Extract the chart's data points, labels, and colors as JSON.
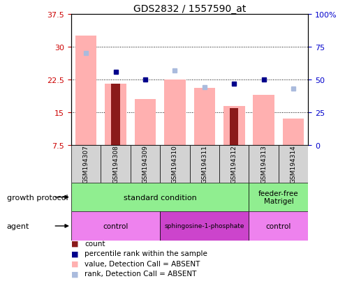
{
  "title": "GDS2832 / 1557590_at",
  "samples": [
    "GSM194307",
    "GSM194308",
    "GSM194309",
    "GSM194310",
    "GSM194311",
    "GSM194312",
    "GSM194313",
    "GSM194314"
  ],
  "ylim_left": [
    7.5,
    37.5
  ],
  "ylim_right": [
    0,
    100
  ],
  "yticks_left": [
    7.5,
    15,
    22.5,
    30,
    37.5
  ],
  "yticks_right": [
    0,
    25,
    50,
    75,
    100
  ],
  "ytick_labels_left": [
    "7.5",
    "15",
    "22.5",
    "30",
    "37.5"
  ],
  "ytick_labels_right": [
    "0",
    "25",
    "50",
    "75",
    "100%"
  ],
  "pink_bar_values": [
    32.5,
    21.5,
    18.0,
    22.5,
    20.5,
    16.5,
    19.0,
    13.5
  ],
  "dark_red_bar_values": [
    null,
    21.5,
    null,
    null,
    null,
    16.0,
    null,
    null
  ],
  "blue_square_pct": [
    null,
    56.0,
    50.0,
    null,
    null,
    47.0,
    50.0,
    null
  ],
  "light_blue_square_pct": [
    70.0,
    null,
    null,
    57.0,
    44.0,
    null,
    null,
    43.0
  ],
  "gp_groups": [
    {
      "label": "standard condition",
      "start": 0,
      "end": 6
    },
    {
      "label": "feeder-free\nMatrigel",
      "start": 6,
      "end": 8
    }
  ],
  "agent_groups": [
    {
      "label": "control",
      "start": 0,
      "end": 3,
      "color": "#ee82ee"
    },
    {
      "label": "sphingosine-1-phosphate",
      "start": 3,
      "end": 6,
      "color": "#cc44cc"
    },
    {
      "label": "control",
      "start": 6,
      "end": 8,
      "color": "#ee82ee"
    }
  ],
  "pink_color": "#ffb0b0",
  "dark_red_color": "#8b1a1a",
  "blue_color": "#00008b",
  "light_blue_color": "#aabbdd",
  "green_color": "#90ee90",
  "gray_color": "#d3d3d3",
  "left_tick_color": "#cc0000",
  "right_tick_color": "#0000cc",
  "grid_yticks": [
    15,
    22.5,
    30
  ],
  "bar_width": 0.45
}
